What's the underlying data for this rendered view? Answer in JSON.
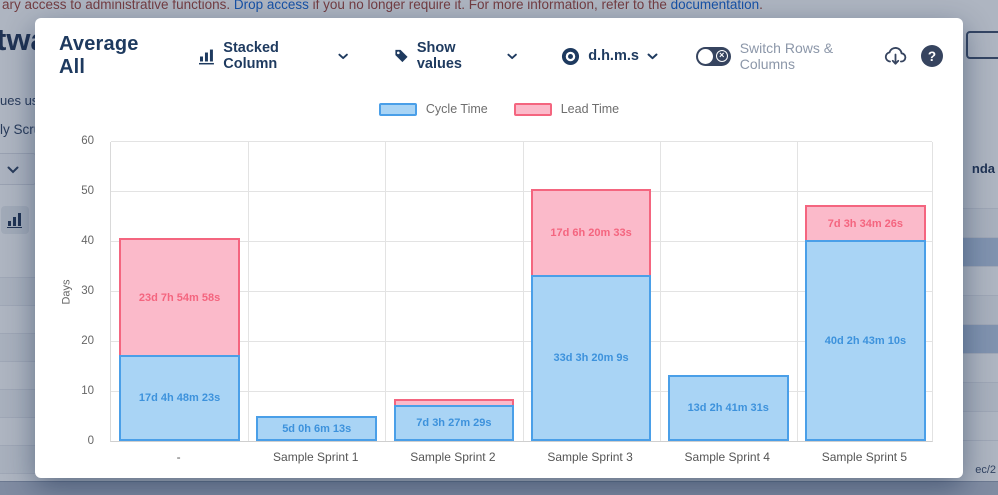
{
  "page_background": {
    "banner": {
      "text_start": "ary access to administrative functions.",
      "link_drop": "Drop access",
      "text_mid": "if you no longer require it. For more information, refer to the",
      "link_doc": "documentation",
      "text_end": "."
    },
    "left_fragments": {
      "heading": "twa",
      "line1": "ues usin",
      "line2": "ly Scrum"
    },
    "right_fragments": {
      "header": "nda",
      "date": "ec/2"
    }
  },
  "modal": {
    "title": "Average All",
    "controls": {
      "chart_type": {
        "label": "Stacked Column"
      },
      "values_mode": {
        "label": "Show values"
      },
      "time_format": {
        "label": "d.h.m.s"
      },
      "switch_rows": {
        "label": "Switch Rows & Columns",
        "state": "off"
      }
    },
    "icons": {
      "help_glyph": "?",
      "toggle_glyph": "×"
    }
  },
  "chart_data": {
    "type": "bar",
    "stacked": true,
    "title": "",
    "categories": [
      "-",
      "Sample Sprint 1",
      "Sample Sprint 2",
      "Sample Sprint 3",
      "Sample Sprint 4",
      "Sample Sprint 5"
    ],
    "series": [
      {
        "name": "Cycle Time",
        "values": [
          17.2,
          5.0,
          7.14,
          33.14,
          13.11,
          40.11
        ],
        "labels": [
          "17d 4h 48m 23s",
          "5d 0h 6m 13s",
          "7d 3h 27m 29s",
          "33d 3h 20m 9s",
          "13d 2h 41m 31s",
          "40d 2h 43m 10s"
        ]
      },
      {
        "name": "Lead Time",
        "values": [
          23.33,
          0,
          1.3,
          17.26,
          0,
          7.15
        ],
        "labels": [
          "23d 7h 54m 58s",
          "",
          "",
          "17d 6h 20m 33s",
          "",
          "7d 3h 34m 26s"
        ]
      }
    ],
    "ylabel": "Days",
    "ylim": [
      0,
      60
    ],
    "yticks": [
      0,
      10,
      20,
      30,
      40,
      50,
      60
    ],
    "legend_position": "top",
    "grid": true
  },
  "colors": {
    "cycle_fill": "#A9D4F5",
    "cycle_border": "#4A9FE8",
    "cycle_label": "#3D92DC",
    "lead_fill": "#FBBACA",
    "lead_border": "#F4657F",
    "lead_label": "#F4657F",
    "grid": "#E3E3E3",
    "axis_text": "#666666",
    "navy": "#1E3A5F",
    "overlay": "rgba(23,43,77,0.35)"
  }
}
